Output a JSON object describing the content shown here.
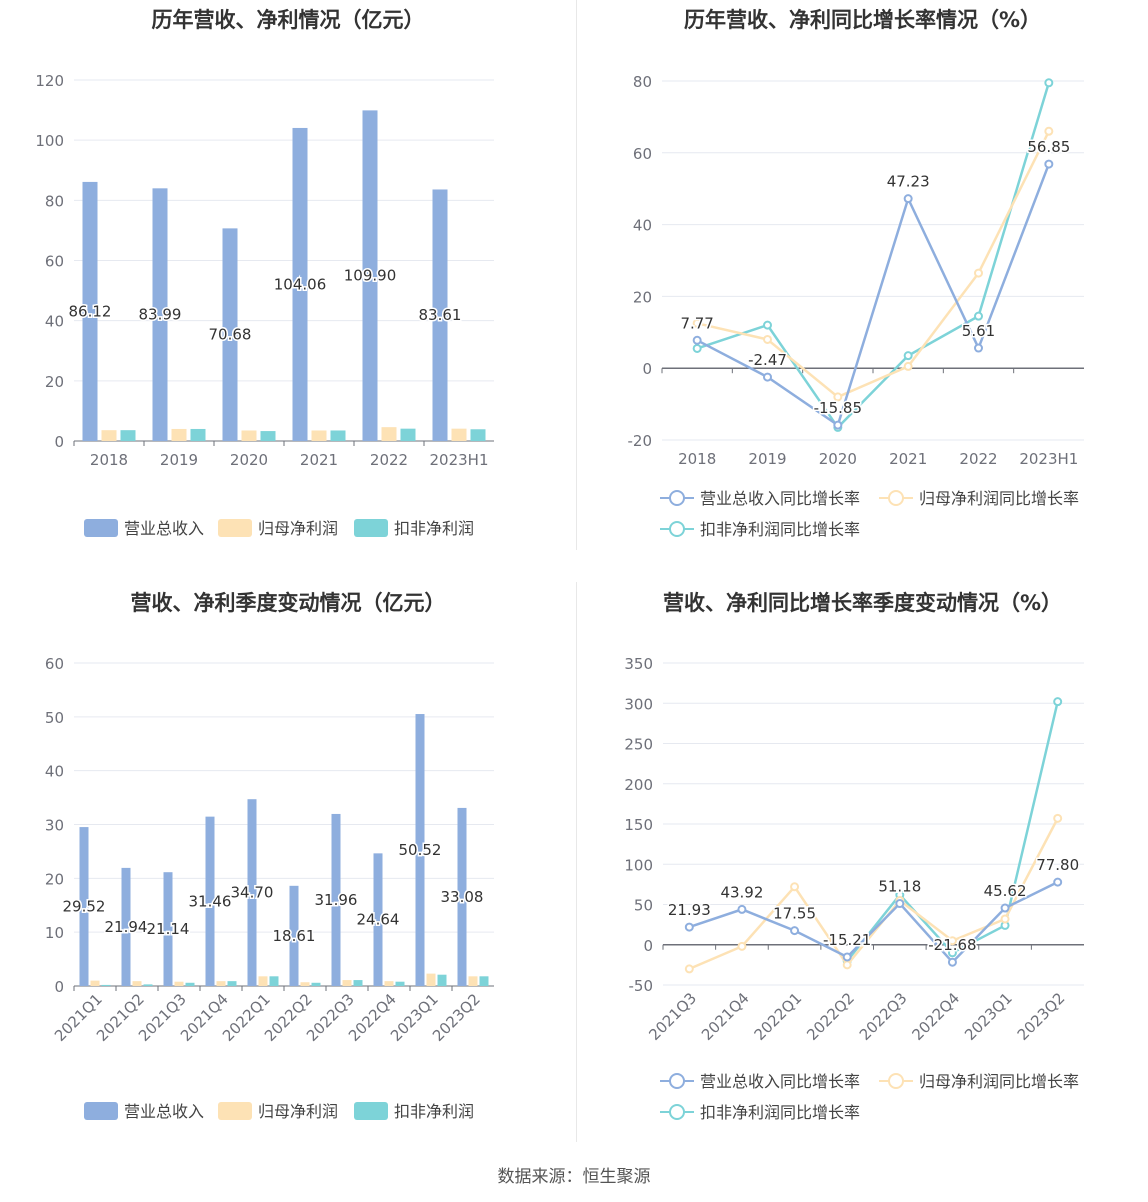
{
  "charts": {
    "c1": {
      "title": "历年营收、净利情况（亿元）",
      "chart_data": {
        "type": "bar",
        "categories": [
          "2018",
          "2019",
          "2020",
          "2021",
          "2022",
          "2023H1"
        ],
        "series": [
          {
            "name": "营业总收入",
            "values": [
              86.12,
              83.99,
              70.68,
              104.06,
              109.9,
              83.61
            ],
            "labels": [
              "86.12",
              "83.99",
              "70.68",
              "104.06",
              "109.90",
              "83.61"
            ],
            "color": "#8eaede"
          },
          {
            "name": "归母净利润",
            "values": [
              3.6,
              4.0,
              3.5,
              3.5,
              4.6,
              4.1
            ],
            "color": "#fde2b5"
          },
          {
            "name": "扣非净利润",
            "values": [
              3.6,
              4.0,
              3.3,
              3.5,
              4.1,
              3.9
            ],
            "color": "#7dd3d8"
          }
        ],
        "ylim": [
          0,
          120
        ],
        "yticks": [
          0,
          20,
          40,
          60,
          80,
          100,
          120
        ]
      }
    },
    "c2": {
      "title": "历年营收、净利同比增长率情况（%）",
      "chart_data": {
        "type": "line",
        "categories": [
          "2018",
          "2019",
          "2020",
          "2021",
          "2022",
          "2023H1"
        ],
        "series": [
          {
            "name": "营业总收入同比增长率",
            "values": [
              7.77,
              -2.47,
              -15.85,
              47.23,
              5.61,
              56.85
            ],
            "labels": [
              "7.77",
              "-2.47",
              "-15.85",
              "47.23",
              "5.61",
              "56.85"
            ],
            "color": "#8eaede"
          },
          {
            "name": "归母净利润同比增长率",
            "values": [
              12.5,
              8.0,
              -8.0,
              0.5,
              26.5,
              66.0
            ],
            "color": "#fde2b5"
          },
          {
            "name": "扣非净利润同比增长率",
            "values": [
              5.5,
              12.0,
              -16.5,
              3.5,
              14.5,
              79.5
            ],
            "color": "#7dd3d8"
          }
        ],
        "ylim": [
          -20,
          80
        ],
        "yticks": [
          -20,
          0,
          20,
          40,
          60,
          80
        ]
      }
    },
    "c3": {
      "title": "营收、净利季度变动情况（亿元）",
      "chart_data": {
        "type": "bar",
        "categories": [
          "2021Q1",
          "2021Q2",
          "2021Q3",
          "2021Q4",
          "2022Q1",
          "2022Q2",
          "2022Q3",
          "2022Q4",
          "2023Q1",
          "2023Q2"
        ],
        "series": [
          {
            "name": "营业总收入",
            "values": [
              29.52,
              21.94,
              21.14,
              31.46,
              34.7,
              18.61,
              31.96,
              24.64,
              50.52,
              33.08
            ],
            "labels": [
              "29.52",
              "21.94",
              "21.14",
              "31.46",
              "34.70",
              "18.61",
              "31.96",
              "24.64",
              "50.52",
              "33.08"
            ],
            "color": "#8eaede"
          },
          {
            "name": "归母净利润",
            "values": [
              1.0,
              0.9,
              0.8,
              0.9,
              1.8,
              0.7,
              1.1,
              0.9,
              2.3,
              1.8
            ],
            "color": "#fde2b5"
          },
          {
            "name": "扣非净利润",
            "values": [
              0.2,
              0.3,
              0.6,
              0.9,
              1.8,
              0.6,
              1.1,
              0.8,
              2.1,
              1.8
            ],
            "color": "#7dd3d8"
          }
        ],
        "ylim": [
          0,
          60
        ],
        "yticks": [
          0,
          10,
          20,
          30,
          40,
          50,
          60
        ]
      }
    },
    "c4": {
      "title": "营收、净利同比增长率季度变动情况（%）",
      "chart_data": {
        "type": "line",
        "categories": [
          "2021Q3",
          "2021Q4",
          "2022Q1",
          "2022Q2",
          "2022Q3",
          "2022Q4",
          "2023Q1",
          "2023Q2"
        ],
        "series": [
          {
            "name": "营业总收入同比增长率",
            "values": [
              21.93,
              43.92,
              17.55,
              -15.21,
              51.18,
              -21.68,
              45.62,
              77.8
            ],
            "labels": [
              "21.93",
              "43.92",
              "17.55",
              "-15.21",
              "51.18",
              "-21.68",
              "45.62",
              "77.80"
            ],
            "color": "#8eaede"
          },
          {
            "name": "归母净利润同比增长率",
            "values": [
              -30,
              -2,
              72,
              -25,
              55,
              5,
              32,
              157
            ],
            "color": "#fde2b5"
          },
          {
            "name": "扣非净利润同比增长率",
            "values": [
              null,
              null,
              null,
              -20,
              62,
              -10,
              24,
              302
            ],
            "color": "#7dd3d8"
          }
        ],
        "ylim": [
          -50,
          350
        ],
        "yticks": [
          -50,
          0,
          50,
          100,
          150,
          200,
          250,
          300,
          350
        ]
      }
    }
  },
  "footer": {
    "source": "数据来源：恒生聚源"
  }
}
